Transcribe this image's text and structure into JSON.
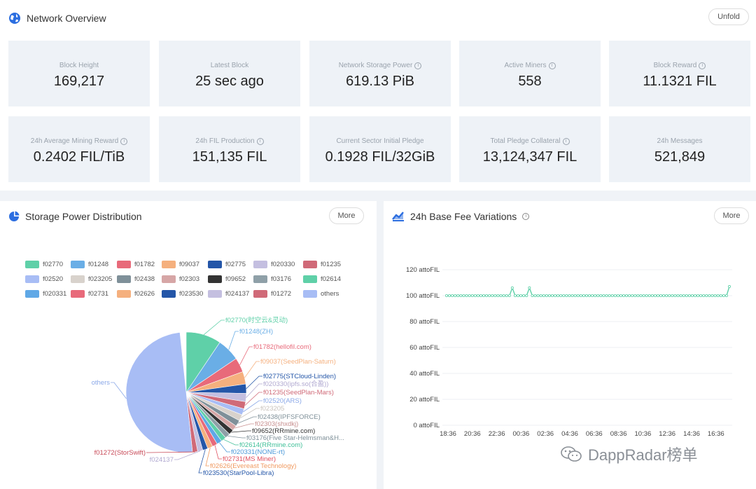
{
  "overview": {
    "title": "Network Overview",
    "unfold_label": "Unfold"
  },
  "stats": [
    {
      "label": "Block Height",
      "value": "169,217",
      "info": false
    },
    {
      "label": "Latest Block",
      "value": "25 sec ago",
      "info": false
    },
    {
      "label": "Network Storage Power",
      "value": "619.13 PiB",
      "info": true
    },
    {
      "label": "Active Miners",
      "value": "558",
      "info": true
    },
    {
      "label": "Block Reward",
      "value": "11.1321 FIL",
      "info": true
    },
    {
      "label": "24h Average Mining Reward",
      "value": "0.2402 FIL/TiB",
      "info": true
    },
    {
      "label": "24h FIL Production",
      "value": "151,135 FIL",
      "info": true
    },
    {
      "label": "Current Sector Initial Pledge",
      "value": "0.1928 FIL/32GiB",
      "info": false
    },
    {
      "label": "Total Pledge Collateral",
      "value": "13,124,347 FIL",
      "info": true
    },
    {
      "label": "24h Messages",
      "value": "521,849",
      "info": false
    }
  ],
  "storage_panel": {
    "title": "Storage Power Distribution",
    "more_label": "More",
    "legend": [
      {
        "name": "f02770",
        "color": "#5fd0a8"
      },
      {
        "name": "f01248",
        "color": "#6aaee6"
      },
      {
        "name": "f01782",
        "color": "#e86a7a"
      },
      {
        "name": "f09037",
        "color": "#f5b07e"
      },
      {
        "name": "f02775",
        "color": "#2456a8"
      },
      {
        "name": "f020330",
        "color": "#c4bfe0"
      },
      {
        "name": "f01235",
        "color": "#d06a78"
      },
      {
        "name": "f02520",
        "color": "#a8bdf5"
      },
      {
        "name": "f023205",
        "color": "#d8d2cc"
      },
      {
        "name": "f02438",
        "color": "#7f9099"
      },
      {
        "name": "f02303",
        "color": "#d6a6a6"
      },
      {
        "name": "f09652",
        "color": "#333333"
      },
      {
        "name": "f03176",
        "color": "#8fa0a8"
      },
      {
        "name": "f02614",
        "color": "#5fd0a8"
      },
      {
        "name": "f020331",
        "color": "#5fa8e6"
      },
      {
        "name": "f02731",
        "color": "#e86a7a"
      },
      {
        "name": "f02626",
        "color": "#f5b07e"
      },
      {
        "name": "f023530",
        "color": "#2456a8"
      },
      {
        "name": "f024137",
        "color": "#c4bfe0"
      },
      {
        "name": "f01272",
        "color": "#d06a78"
      },
      {
        "name": "others",
        "color": "#a8bdf5"
      }
    ],
    "pie_labels": [
      {
        "text": "f02770(时空云&灵动)",
        "color": "#5fd0a8"
      },
      {
        "text": "f01248(ZH)",
        "color": "#6aaee6"
      },
      {
        "text": "f01782(hellofil.com)",
        "color": "#e86a7a"
      },
      {
        "text": "f09037(SeedPlan-Saturn)",
        "color": "#f5b07e"
      },
      {
        "text": "f02775(STCloud-Linden)",
        "color": "#2456a8"
      },
      {
        "text": "f020330(ipfs.so(合盈))",
        "color": "#b0a8d0"
      },
      {
        "text": "f01235(SeedPlan-Mars)",
        "color": "#d06a78"
      },
      {
        "text": "f02520(ARS)",
        "color": "#8aa8e8"
      },
      {
        "text": "f023205",
        "color": "#c8c2bc"
      },
      {
        "text": "f02438(IPFSFORCE)",
        "color": "#7f9099"
      },
      {
        "text": "f02303(shxdkj)",
        "color": "#c89090"
      },
      {
        "text": "f09652(RRmine.com)",
        "color": "#333333"
      },
      {
        "text": "f03176(Five Star-Helmsman&H...",
        "color": "#7f9099"
      },
      {
        "text": "f02614(RRmine.com)",
        "color": "#3fbf98"
      },
      {
        "text": "f020331(NONE-rt)",
        "color": "#4a98d8"
      },
      {
        "text": "f02731(MS Miner)",
        "color": "#e0505f"
      },
      {
        "text": "f02626(Evereast Technology)",
        "color": "#f09a60"
      },
      {
        "text": "f023530(StarPool-Libra)",
        "color": "#2456a8"
      },
      {
        "text": "f024137",
        "color": "#b0a8d0"
      },
      {
        "text": "f01272(StorSwift)",
        "color": "#c84a58"
      },
      {
        "text": "others",
        "color": "#8aa8e8"
      }
    ]
  },
  "basefee_panel": {
    "title": "24h Base Fee Variations",
    "more_label": "More"
  },
  "chart_data": {
    "type": "line",
    "title": "24h Base Fee Variations",
    "x_ticks": [
      "18:36",
      "20:36",
      "22:36",
      "00:36",
      "02:36",
      "04:36",
      "06:36",
      "08:36",
      "10:36",
      "12:36",
      "14:36",
      "16:36"
    ],
    "y_ticks": [
      "0 attoFIL",
      "20 attoFIL",
      "40 attoFIL",
      "60 attoFIL",
      "80 attoFIL",
      "100 attoFIL",
      "120 attoFIL"
    ],
    "ylim": [
      0,
      120
    ],
    "series": [
      {
        "color": "#5fd0a8",
        "values": [
          100,
          100,
          100,
          100,
          100,
          100,
          100,
          100,
          100,
          100,
          100,
          100,
          100,
          100,
          100,
          100,
          100,
          100,
          100,
          100,
          100,
          100,
          100,
          106,
          100,
          100,
          100,
          100,
          100,
          106,
          100,
          100,
          100,
          100,
          100,
          100,
          100,
          100,
          100,
          100,
          100,
          100,
          100,
          100,
          100,
          100,
          100,
          100,
          100,
          100,
          100,
          100,
          100,
          100,
          100,
          100,
          100,
          100,
          100,
          100,
          100,
          100,
          100,
          100,
          100,
          100,
          100,
          100,
          100,
          100,
          100,
          100,
          100,
          100,
          100,
          100,
          100,
          100,
          100,
          100,
          100,
          100,
          100,
          100,
          100,
          100,
          100,
          100,
          100,
          100,
          100,
          100,
          100,
          100,
          100,
          100,
          100,
          100,
          100,
          107
        ]
      }
    ]
  },
  "watermark": "DappRadar榜单"
}
